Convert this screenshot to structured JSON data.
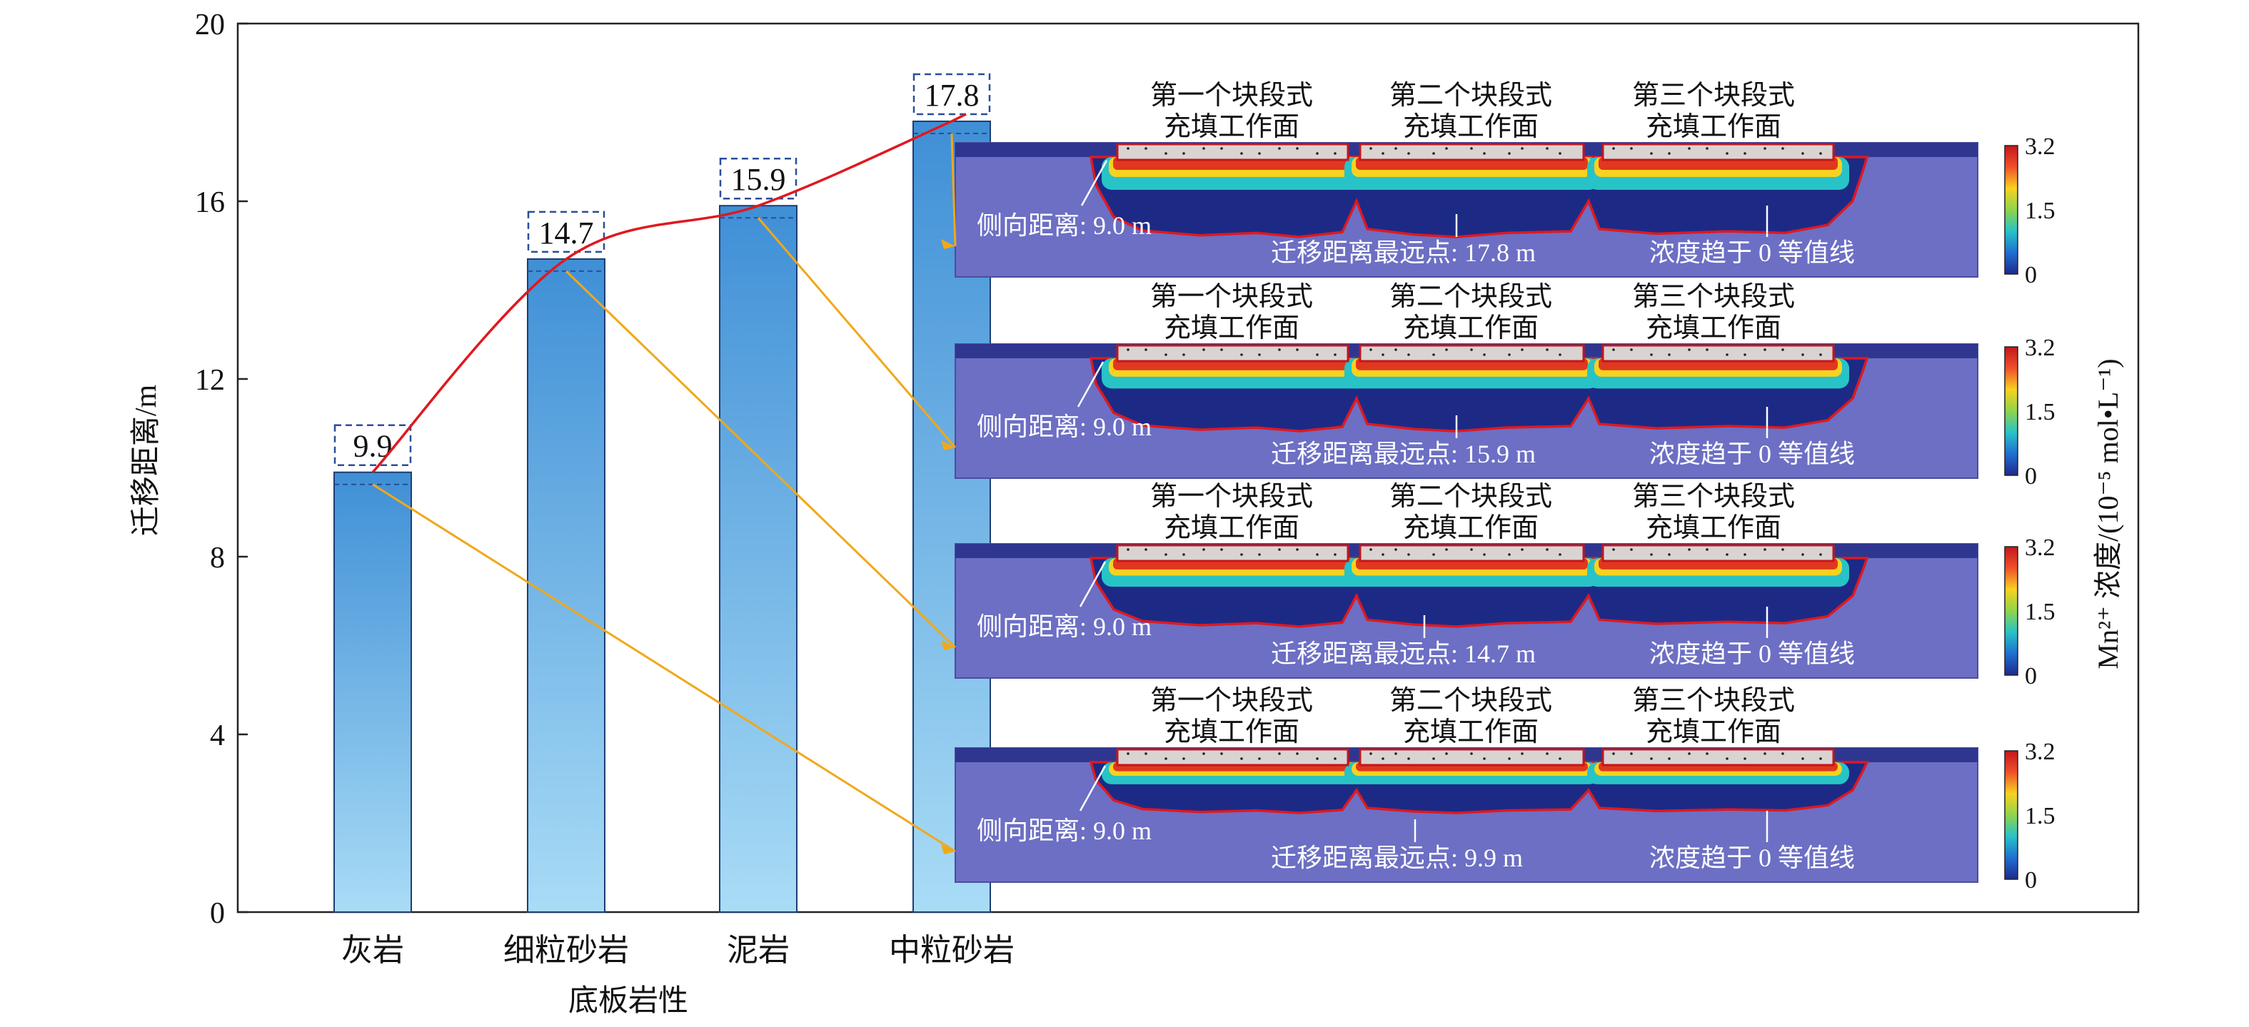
{
  "chart_data": {
    "type": "bar",
    "xlabel": "底板岩性",
    "ylabel": "迁移距离/m",
    "ylim": [
      0,
      20
    ],
    "yticks": [
      0,
      4,
      8,
      12,
      16,
      20
    ],
    "categories": [
      "灰岩",
      "细粒砂岩",
      "泥岩",
      "中粒砂岩"
    ],
    "values": [
      9.9,
      14.7,
      15.9,
      17.8
    ],
    "value_labels": [
      "9.9",
      "14.7",
      "15.9",
      "17.8"
    ],
    "trend_line": true,
    "bar_gradient": [
      "#3f8fd6",
      "#a9dcf6"
    ],
    "colors": {
      "trend": "#e0181e",
      "connector": "#f0a81a",
      "label_box": "#2a4d9a"
    }
  },
  "insets": {
    "order": [
      "中粒砂岩",
      "泥岩",
      "细粒砂岩",
      "灰岩"
    ],
    "panels": [
      {
        "rock": "中粒砂岩",
        "far_label": "迁移距离最远点: 17.8 m",
        "depth": 17.8
      },
      {
        "rock": "泥岩",
        "far_label": "迁移距离最远点: 15.9 m",
        "depth": 15.9
      },
      {
        "rock": "细粒砂岩",
        "far_label": "迁移距离最远点: 14.7 m",
        "depth": 14.7
      },
      {
        "rock": "灰岩",
        "far_label": "迁移距离最远点: 9.9 m",
        "depth": 9.9
      }
    ],
    "face_labels": [
      [
        "第一个块段式",
        "充填工作面"
      ],
      [
        "第二个块段式",
        "充填工作面"
      ],
      [
        "第三个块段式",
        "充填工作面"
      ]
    ],
    "side_label": "侧向距离: 9.0 m",
    "contour_label": "浓度趋于 0 等值线",
    "colorbar_ticks": [
      "3.2",
      "1.5",
      "0"
    ],
    "colorbar_title": "Mn²⁺ 浓度/(10⁻⁵ mol•L⁻¹)",
    "colorbar_colors": [
      "#c4161c",
      "#f0502a",
      "#f7d21f",
      "#8fd44a",
      "#27c3c7",
      "#1f6fd0",
      "#1e2a8e"
    ],
    "background_color": "#6c6fc4"
  }
}
